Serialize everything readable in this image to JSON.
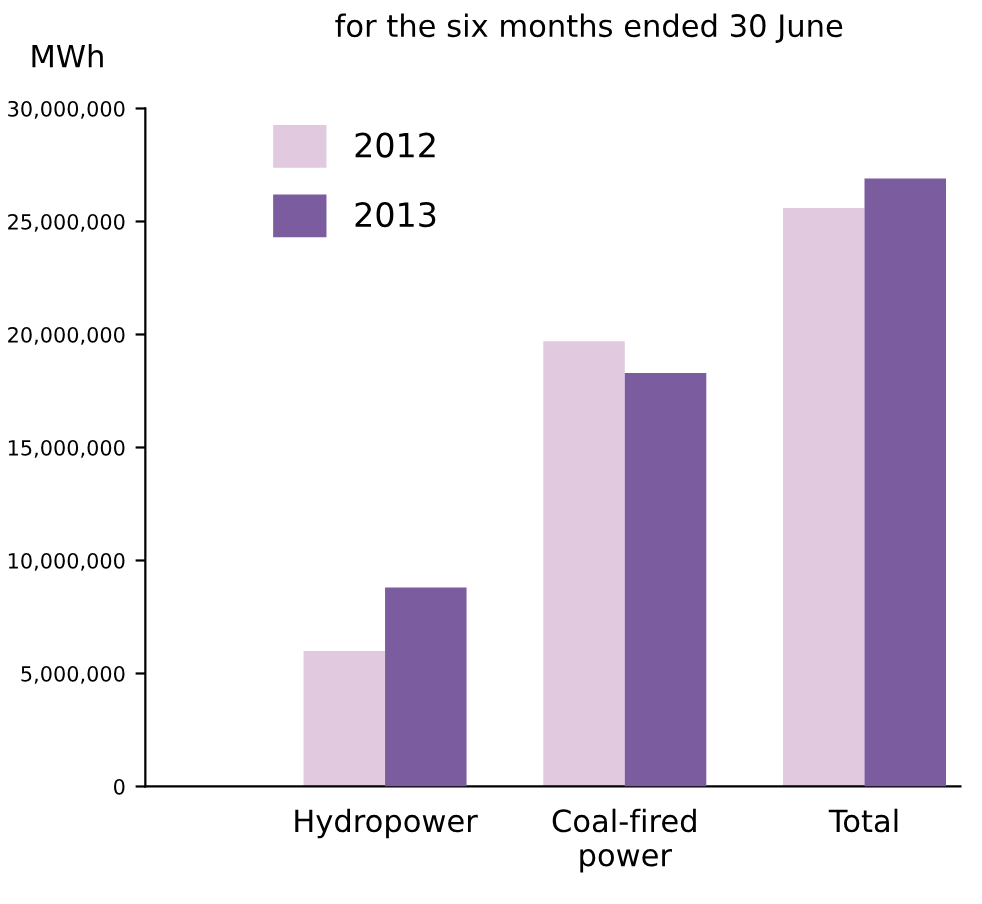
{
  "chart_data": {
    "type": "bar",
    "title": "for the six months ended 30 June",
    "ylabel": "MWh",
    "categories": [
      "Hydropower",
      "Coal-fired\npower",
      "Total"
    ],
    "series": [
      {
        "name": "2012",
        "color": "#e1c9e0",
        "values": [
          6000000,
          19700000,
          25600000
        ]
      },
      {
        "name": "2013",
        "color": "#7b5c9e",
        "values": [
          8800000,
          18300000,
          26900000
        ]
      }
    ],
    "ylim": [
      0,
      30000000
    ],
    "yticks": [
      {
        "value": 0,
        "label": "0"
      },
      {
        "value": 5000000,
        "label": "5,000,000"
      },
      {
        "value": 10000000,
        "label": "10,000,000"
      },
      {
        "value": 15000000,
        "label": "15,000,000"
      },
      {
        "value": 20000000,
        "label": "20,000,000"
      },
      {
        "value": 25000000,
        "label": "25,000,000"
      },
      {
        "value": 30000000,
        "label": "30,000,000"
      }
    ],
    "grid": false,
    "legend": "top left"
  }
}
